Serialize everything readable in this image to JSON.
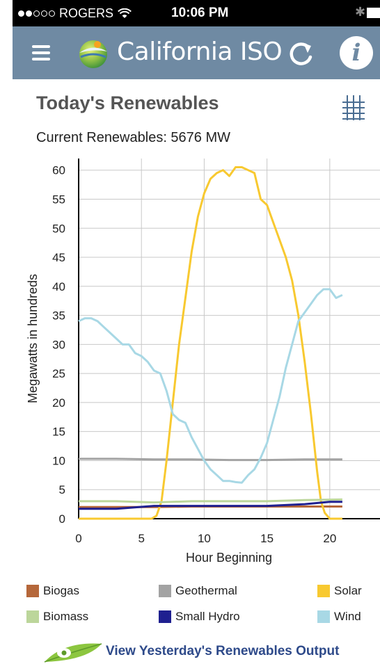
{
  "status_bar": {
    "carrier": "ROGERS",
    "time": "10:06 PM",
    "signal_bars_filled": 2,
    "signal_bars_total": 5
  },
  "nav": {
    "title": "California ISO",
    "menu_icon": "hamburger-menu-icon",
    "refresh_icon": "refresh-icon",
    "info_icon": "info-icon",
    "info_glyph": "i",
    "bar_color": "#6f8aa3"
  },
  "page": {
    "title": "Today's Renewables",
    "current_label": "Current Renewables: 5676 MW",
    "grid_icon": "table-grid-icon"
  },
  "chart_data": {
    "type": "line",
    "xlabel": "Hour Beginning",
    "ylabel": "Megawatts in hundreds",
    "xlim": [
      0,
      24
    ],
    "ylim": [
      0,
      62
    ],
    "xticks": [
      0,
      5,
      10,
      15,
      20
    ],
    "yticks": [
      0,
      5,
      10,
      15,
      20,
      25,
      30,
      35,
      40,
      45,
      50,
      55,
      60
    ],
    "grid": true,
    "series": [
      {
        "name": "Biogas",
        "color": "#b5673a",
        "x": [
          0,
          3,
          6,
          9,
          12,
          15,
          18,
          21
        ],
        "values": [
          2.0,
          2.0,
          2.0,
          2.1,
          2.1,
          2.1,
          2.1,
          2.1
        ]
      },
      {
        "name": "Geothermal",
        "color": "#a3a3a3",
        "x": [
          0,
          3,
          6,
          9,
          12,
          15,
          18,
          21
        ],
        "values": [
          10.3,
          10.3,
          10.2,
          10.2,
          10.1,
          10.1,
          10.2,
          10.2
        ]
      },
      {
        "name": "Solar",
        "color": "#f8c930",
        "x": [
          0,
          5.8,
          6.2,
          6.6,
          7.0,
          7.5,
          8.0,
          8.5,
          9.0,
          9.5,
          10.0,
          10.5,
          11.0,
          11.5,
          12.0,
          12.5,
          13.0,
          13.5,
          14.0,
          14.5,
          15.0,
          15.5,
          16.0,
          16.5,
          17.0,
          17.5,
          18.0,
          18.5,
          19.0,
          19.3,
          19.6,
          20.0,
          21.0
        ],
        "values": [
          0,
          0,
          0.5,
          3,
          10,
          20,
          30,
          38,
          46,
          52,
          56,
          58.5,
          59.5,
          60,
          59,
          60.5,
          60.5,
          60,
          59.5,
          55,
          54,
          51,
          48,
          45,
          41,
          35,
          27,
          18,
          8,
          3,
          1,
          0,
          0
        ]
      },
      {
        "name": "Biomass",
        "color": "#bcd69b",
        "x": [
          0,
          3,
          6,
          9,
          12,
          15,
          18,
          21
        ],
        "values": [
          3.0,
          3.0,
          2.8,
          3.0,
          3.0,
          3.0,
          3.2,
          3.3
        ]
      },
      {
        "name": "Small Hydro",
        "color": "#1f2090",
        "x": [
          0,
          3,
          6,
          9,
          12,
          15,
          18,
          20,
          21
        ],
        "values": [
          1.7,
          1.7,
          2.2,
          2.2,
          2.2,
          2.2,
          2.5,
          2.9,
          2.9
        ]
      },
      {
        "name": "Wind",
        "color": "#a8d8e5",
        "x": [
          0,
          0.5,
          1,
          1.5,
          2,
          2.5,
          3,
          3.5,
          4,
          4.5,
          5,
          5.5,
          6,
          6.5,
          7,
          7.5,
          8,
          8.5,
          9,
          9.5,
          10,
          10.5,
          11,
          11.5,
          12,
          12.5,
          13,
          13.5,
          14,
          14.5,
          15,
          15.5,
          16,
          16.5,
          17,
          17.5,
          18,
          18.5,
          19,
          19.5,
          20,
          20.5,
          21
        ],
        "values": [
          34,
          34.5,
          34.5,
          34,
          33,
          32,
          31,
          30,
          30,
          28.5,
          28,
          27,
          25.5,
          25,
          22,
          18,
          17,
          16.5,
          14,
          12,
          10,
          8.5,
          7.5,
          6.5,
          6.5,
          6.3,
          6.2,
          7.5,
          8.5,
          10.5,
          13,
          17,
          21,
          26,
          30,
          34,
          35.5,
          37,
          38.5,
          39.5,
          39.5,
          38,
          38.5
        ]
      }
    ]
  },
  "legend": [
    {
      "label": "Biogas",
      "color": "#b5673a"
    },
    {
      "label": "Geothermal",
      "color": "#a3a3a3"
    },
    {
      "label": "Solar",
      "color": "#f8c930"
    },
    {
      "label": "Biomass",
      "color": "#bcd69b"
    },
    {
      "label": "Small Hydro",
      "color": "#1f2090"
    },
    {
      "label": "Wind",
      "color": "#a8d8e5"
    }
  ],
  "footer": {
    "link_label": "View Yesterday's Renewables Output",
    "leaf_icon": "leaf-logo-icon"
  }
}
